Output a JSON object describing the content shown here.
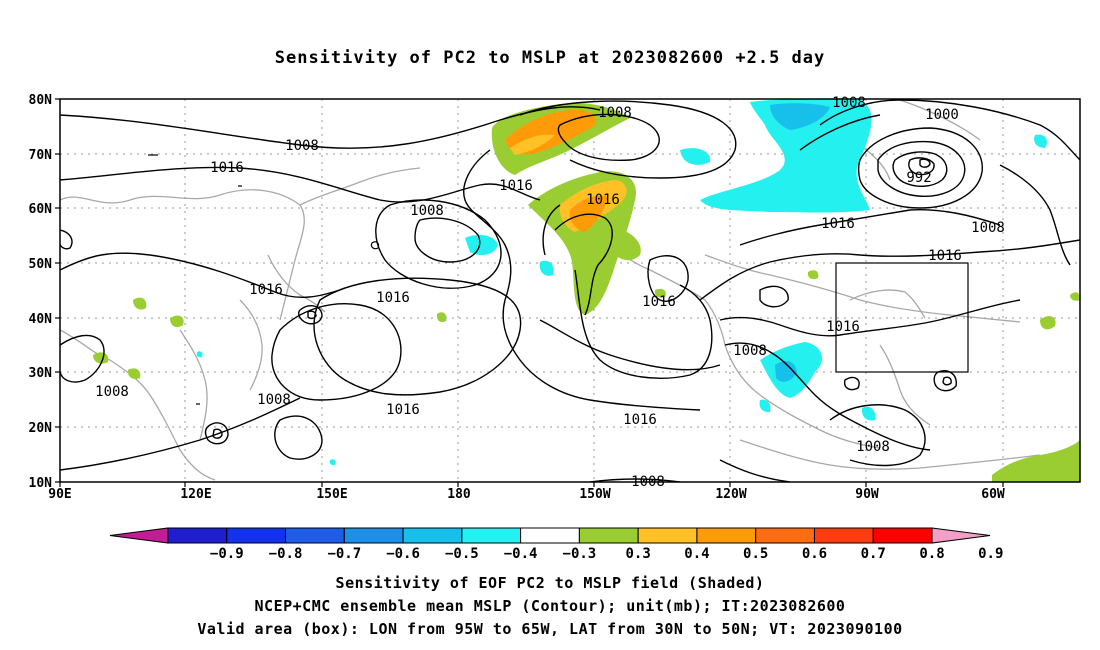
{
  "title": "Sensitivity of PC2 to MSLP at 2023082600 +2.5 day",
  "axes": {
    "lat_labels": [
      "80N",
      "70N",
      "60N",
      "50N",
      "40N",
      "30N",
      "20N",
      "10N"
    ],
    "lon_labels": [
      "90E",
      "120E",
      "150E",
      "180",
      "150W",
      "120W",
      "90W",
      "60W"
    ]
  },
  "contour_labels": [
    "1008",
    "1008",
    "1016",
    "1016",
    "1008",
    "1008",
    "1016",
    "1016",
    "1016",
    "1016",
    "1016",
    "1016",
    "1008",
    "1008",
    "1016",
    "1016",
    "1008",
    "1016",
    "1008",
    "1000",
    "992",
    "1016",
    "1016",
    "1008",
    "1008",
    "1008"
  ],
  "colorbar": {
    "labels": [
      "-0.9",
      "-0.8",
      "-0.7",
      "-0.6",
      "-0.5",
      "-0.4",
      "-0.3",
      "0.3",
      "0.4",
      "0.5",
      "0.6",
      "0.7",
      "0.8",
      "0.9"
    ],
    "colors": [
      "#c21d93",
      "#1e1ecf",
      "#1232ee",
      "#1f5de8",
      "#1e8fe8",
      "#17bfeb",
      "#25f0f0",
      "#ffffff",
      "#9acd32",
      "#ffc125",
      "#ff9a08",
      "#ff6d12",
      "#ff3c0f",
      "#ff0000",
      "#f2a0c8"
    ]
  },
  "valid_box": {
    "lon_min": "95W",
    "lon_max": "65W",
    "lat_min": "30N",
    "lat_max": "50N"
  },
  "captions": [
    "Sensitivity of EOF PC2 to MSLP field (Shaded)",
    "NCEP+CMC ensemble mean MSLP (Contour); unit(mb); IT:2023082600",
    "Valid area (box): LON from 95W to 65W, LAT from 30N to 50N; VT: 2023090100"
  ]
}
